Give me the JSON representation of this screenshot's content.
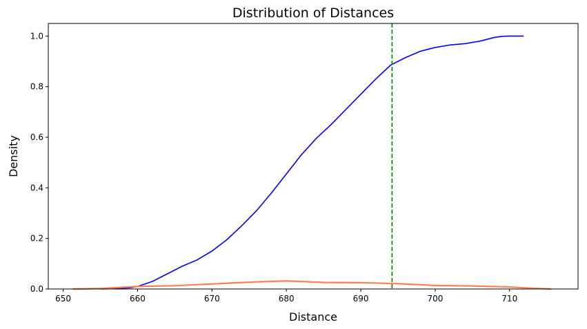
{
  "chart_data": {
    "type": "line",
    "title": "Distribution of Distances",
    "xlabel": "Distance",
    "ylabel": "Density",
    "xlim": [
      648.0,
      719.2
    ],
    "ylim": [
      0.0,
      1.05
    ],
    "xticks": [
      650,
      660,
      670,
      680,
      690,
      700,
      710
    ],
    "yticks": [
      0.0,
      0.2,
      0.4,
      0.6,
      0.8,
      1.0
    ],
    "grid": false,
    "legend": "none",
    "vline": {
      "x": 694.2,
      "color": "#008000",
      "style": "dashed"
    },
    "series": [
      {
        "color": "#0000ff",
        "x": [
          655.2,
          657,
          659,
          660,
          662,
          664,
          666,
          668,
          670,
          672,
          674,
          676,
          678,
          680,
          682,
          684,
          686,
          688,
          690,
          692,
          694,
          696,
          698,
          700,
          702,
          704,
          706,
          708,
          709,
          710,
          711,
          711.9
        ],
        "y": [
          0.0,
          0.002,
          0.005,
          0.01,
          0.03,
          0.06,
          0.09,
          0.115,
          0.15,
          0.195,
          0.25,
          0.31,
          0.38,
          0.455,
          0.53,
          0.595,
          0.65,
          0.71,
          0.77,
          0.83,
          0.885,
          0.915,
          0.94,
          0.955,
          0.965,
          0.97,
          0.98,
          0.995,
          0.999,
          1.0,
          1.0,
          1.0
        ]
      },
      {
        "color": "#ff7f50",
        "x": [
          651.3,
          655,
          660,
          665,
          670,
          675,
          680,
          685,
          690,
          695,
          700,
          705,
          710,
          713,
          715.6
        ],
        "y": [
          0.0,
          0.002,
          0.01,
          0.013,
          0.02,
          0.027,
          0.032,
          0.026,
          0.025,
          0.021,
          0.014,
          0.012,
          0.008,
          0.003,
          0.0
        ]
      }
    ]
  }
}
